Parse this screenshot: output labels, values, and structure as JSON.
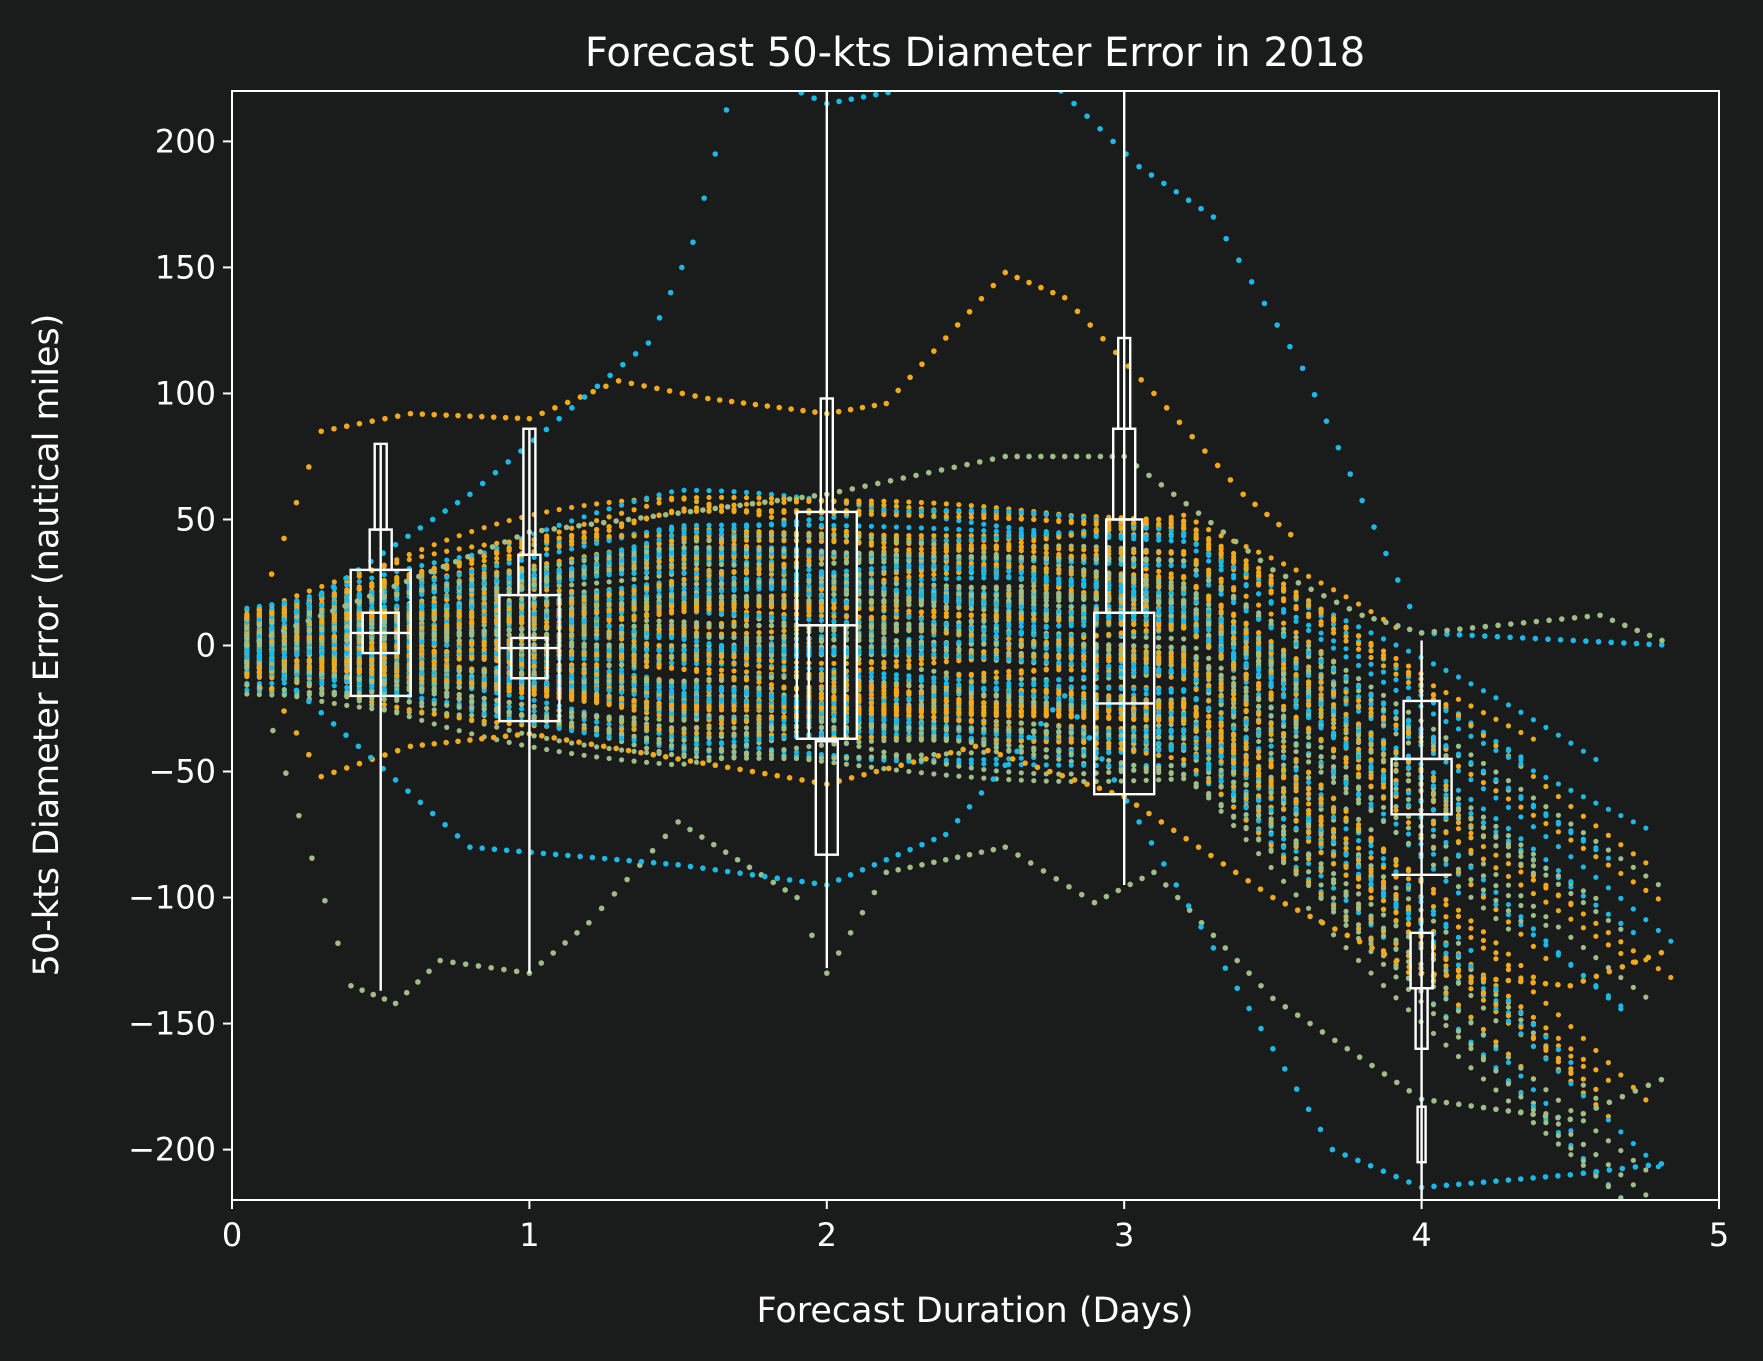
{
  "chart_data": {
    "type": "scatter",
    "title": "Forecast 50-kts Diameter Error in 2018",
    "xlabel": "Forecast Duration (Days)",
    "ylabel": "50-kts Diameter Error (nautical miles)",
    "xlim": [
      0,
      5
    ],
    "ylim": [
      -220,
      220
    ],
    "xticks": [
      0,
      1,
      2,
      3,
      4,
      5
    ],
    "xtick_labels": [
      "0",
      "1",
      "2",
      "3",
      "4",
      "5"
    ],
    "yticks": [
      -200,
      -150,
      -100,
      -50,
      0,
      50,
      100,
      150,
      200
    ],
    "ytick_labels": [
      "−200",
      "−150",
      "−100",
      "−50",
      "0",
      "50",
      "100",
      "150",
      "200"
    ],
    "grid": false,
    "background": "#1a1b1b",
    "series_colors": [
      "#f2a91c",
      "#9fbd86",
      "#1ab9e8"
    ],
    "boxplots": [
      {
        "day": 0.5,
        "levels": [
          [
            -20,
            30
          ],
          [
            -3,
            13
          ],
          [
            30,
            46
          ],
          [
            46,
            80
          ]
        ],
        "median": 5,
        "whisker_low": -137,
        "whisker_high": 80
      },
      {
        "day": 1.0,
        "levels": [
          [
            -30,
            20
          ],
          [
            -13,
            3
          ],
          [
            20,
            36
          ],
          [
            36,
            86
          ]
        ],
        "median": -1,
        "whisker_low": -130,
        "whisker_high": 86
      },
      {
        "day": 2.0,
        "levels": [
          [
            -37,
            53
          ],
          [
            -37,
            8
          ],
          [
            -38,
            -83
          ],
          [
            53,
            98
          ]
        ],
        "median": 8,
        "whisker_low": -128,
        "whisker_high": 220
      },
      {
        "day": 3.0,
        "levels": [
          [
            -59,
            13
          ],
          [
            13,
            50
          ],
          [
            50,
            86
          ],
          [
            86,
            122
          ]
        ],
        "median": -23,
        "whisker_low": -95,
        "whisker_high": 220
      },
      {
        "day": 4.0,
        "levels": [
          [
            -67,
            -45
          ],
          [
            -45,
            -22
          ],
          [
            -136,
            -114
          ],
          [
            -160,
            -136
          ],
          [
            -205,
            -183
          ]
        ],
        "median": -91,
        "whisker_low": -220,
        "whisker_high": 2
      }
    ],
    "tracks_sample": [
      {
        "color": "#f2a91c",
        "points": [
          [
            0.05,
            0
          ],
          [
            0.3,
            85
          ],
          [
            0.6,
            92
          ],
          [
            1.0,
            90
          ],
          [
            1.3,
            105
          ],
          [
            1.6,
            98
          ],
          [
            2.0,
            92
          ],
          [
            2.2,
            96
          ],
          [
            2.6,
            148
          ],
          [
            2.8,
            138
          ],
          [
            3.1,
            100
          ],
          [
            3.4,
            60
          ],
          [
            3.6,
            40
          ]
        ]
      },
      {
        "color": "#f2a91c",
        "points": [
          [
            0.05,
            0
          ],
          [
            0.3,
            -52
          ],
          [
            0.6,
            -40
          ],
          [
            1.0,
            -35
          ],
          [
            1.5,
            -45
          ],
          [
            2.0,
            -55
          ],
          [
            2.5,
            -40
          ],
          [
            3.0,
            -60
          ],
          [
            3.5,
            -100
          ],
          [
            4.0,
            -130
          ],
          [
            4.5,
            -135
          ],
          [
            4.85,
            -120
          ]
        ]
      },
      {
        "color": "#9fbd86",
        "points": [
          [
            0.05,
            0
          ],
          [
            0.4,
            -135
          ],
          [
            0.55,
            -142
          ],
          [
            0.7,
            -125
          ],
          [
            1.0,
            -130
          ],
          [
            1.2,
            -110
          ],
          [
            1.5,
            -70
          ],
          [
            1.9,
            -100
          ],
          [
            2.0,
            -130
          ],
          [
            2.2,
            -90
          ],
          [
            2.6,
            -80
          ],
          [
            2.9,
            -102
          ],
          [
            3.1,
            -90
          ],
          [
            3.5,
            -140
          ],
          [
            4.0,
            -180
          ],
          [
            4.5,
            -188
          ],
          [
            4.85,
            -170
          ]
        ]
      },
      {
        "color": "#1ab9e8",
        "points": [
          [
            0.05,
            0
          ],
          [
            0.8,
            -80
          ],
          [
            1.5,
            -87
          ],
          [
            2.0,
            -95
          ],
          [
            2.4,
            -75
          ],
          [
            2.8,
            -20
          ],
          [
            3.3,
            -120
          ],
          [
            3.7,
            -200
          ],
          [
            4.0,
            -215
          ],
          [
            4.5,
            -210
          ],
          [
            4.85,
            -205
          ]
        ]
      },
      {
        "color": "#1ab9e8",
        "points": [
          [
            0.05,
            0
          ],
          [
            0.8,
            60
          ],
          [
            1.4,
            120
          ],
          [
            1.55,
            160
          ],
          [
            1.7,
            230
          ],
          [
            2.0,
            215
          ],
          [
            2.7,
            230
          ],
          [
            3.05,
            190
          ],
          [
            3.3,
            170
          ],
          [
            3.6,
            110
          ],
          [
            4.0,
            5
          ],
          [
            4.85,
            0
          ]
        ]
      },
      {
        "color": "#9fbd86",
        "points": [
          [
            0.05,
            0
          ],
          [
            1.0,
            45
          ],
          [
            2.0,
            60
          ],
          [
            2.6,
            75
          ],
          [
            3.0,
            75
          ],
          [
            3.5,
            30
          ],
          [
            3.8,
            12
          ],
          [
            4.0,
            5
          ],
          [
            4.6,
            12
          ],
          [
            4.85,
            0
          ]
        ]
      }
    ]
  }
}
